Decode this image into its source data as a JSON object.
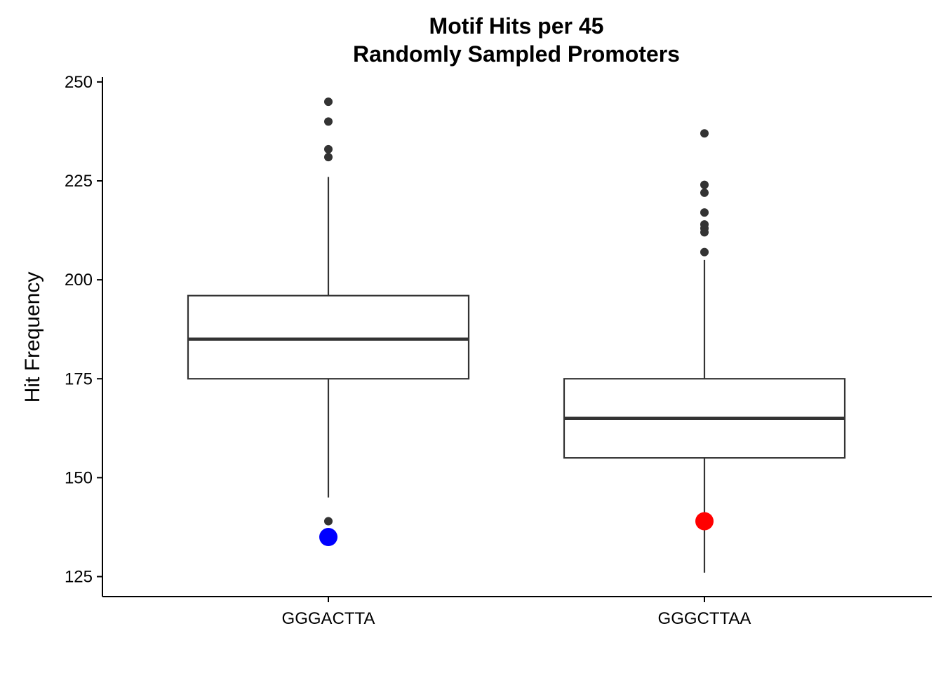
{
  "chart_data": {
    "type": "boxplot",
    "title_lines": [
      "Motif Hits per 45",
      "Randomly Sampled Promoters"
    ],
    "xlabel": "",
    "ylabel": "Hit Frequency",
    "ylim": [
      120,
      251
    ],
    "yticks": [
      125,
      150,
      175,
      200,
      225,
      250
    ],
    "grid": false,
    "legend": "none",
    "categories": [
      "GGGACTTA",
      "GGGCTTAA"
    ],
    "boxes": [
      {
        "category": "GGGACTTA",
        "whisker_low": 145,
        "q1": 175,
        "median": 185,
        "q3": 196,
        "whisker_high": 226,
        "outliers": [
          245,
          240,
          233,
          231,
          139
        ],
        "highlight": {
          "value": 135,
          "color": "#0000ff"
        }
      },
      {
        "category": "GGGCTTAA",
        "whisker_low": 126,
        "q1": 155,
        "median": 165,
        "q3": 175,
        "whisker_high": 205,
        "outliers": [
          237,
          224,
          222,
          217,
          214,
          213,
          212,
          207
        ],
        "highlight": {
          "value": 139,
          "color": "#ff0000"
        }
      }
    ],
    "colors": {
      "box_line": "#333333",
      "outlier": "#333333",
      "axis": "#000000"
    }
  }
}
